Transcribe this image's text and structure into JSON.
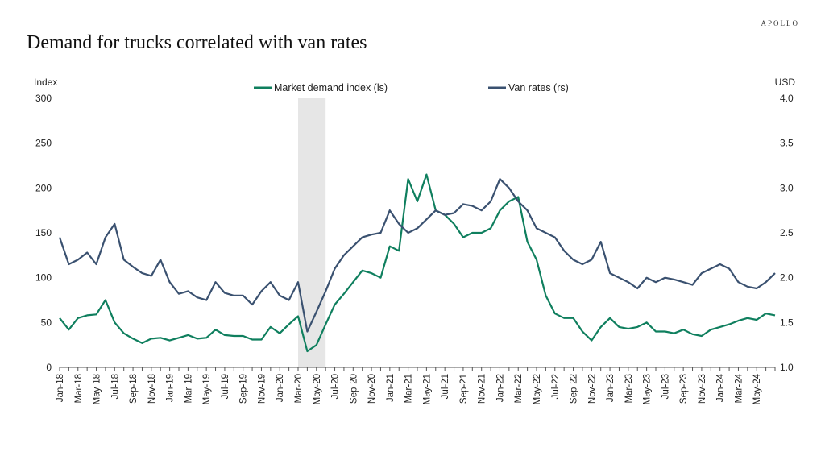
{
  "brand": "APOLLO",
  "title": "Demand for trucks correlated with van rates",
  "colors": {
    "market_demand": "#0f7f5e",
    "van_rates": "#3a5170",
    "recession_shade": "#e6e6e6"
  },
  "chart_data": {
    "type": "line",
    "left_axis_label": "Index",
    "right_axis_label": "USD",
    "y_left_range": [
      0,
      300
    ],
    "y_right_range": [
      1.0,
      4.0
    ],
    "y_left_ticks": [
      "0",
      "50",
      "100",
      "150",
      "200",
      "250",
      "300"
    ],
    "y_right_ticks": [
      "1.0",
      "1.5",
      "2.0",
      "2.5",
      "3.0",
      "3.5",
      "4.0"
    ],
    "x_range": [
      "2018-01",
      "2024-07"
    ],
    "x_tick_labels": [
      "Jan-18",
      "Mar-18",
      "May-18",
      "Jul-18",
      "Sep-18",
      "Nov-18",
      "Jan-19",
      "Mar-19",
      "May-19",
      "Jul-19",
      "Sep-19",
      "Nov-19",
      "Jan-20",
      "Mar-20",
      "May-20",
      "Jul-20",
      "Sep-20",
      "Nov-20",
      "Jan-21",
      "Mar-21",
      "May-21",
      "Jul-21",
      "Sep-21",
      "Nov-21",
      "Jan-22",
      "Mar-22",
      "May-22",
      "Jul-22",
      "Sep-22",
      "Nov-22",
      "Jan-23",
      "Mar-23",
      "May-23",
      "Jul-23",
      "Sep-23",
      "Nov-23",
      "Jan-24",
      "Mar-24",
      "May-24"
    ],
    "shaded_region": [
      "2020-03",
      "2020-06"
    ],
    "grid": false,
    "legend_position": "top-center",
    "series": [
      {
        "name": "Market demand index (ls)",
        "axis": "left",
        "x": [
          "2018-01",
          "2018-02",
          "2018-03",
          "2018-04",
          "2018-05",
          "2018-06",
          "2018-07",
          "2018-08",
          "2018-09",
          "2018-10",
          "2018-11",
          "2018-12",
          "2019-01",
          "2019-02",
          "2019-03",
          "2019-04",
          "2019-05",
          "2019-06",
          "2019-07",
          "2019-08",
          "2019-09",
          "2019-10",
          "2019-11",
          "2019-12",
          "2020-01",
          "2020-02",
          "2020-03",
          "2020-04",
          "2020-05",
          "2020-06",
          "2020-07",
          "2020-08",
          "2020-09",
          "2020-10",
          "2020-11",
          "2020-12",
          "2021-01",
          "2021-02",
          "2021-03",
          "2021-04",
          "2021-05",
          "2021-06",
          "2021-07",
          "2021-08",
          "2021-09",
          "2021-10",
          "2021-11",
          "2021-12",
          "2022-01",
          "2022-02",
          "2022-03",
          "2022-04",
          "2022-05",
          "2022-06",
          "2022-07",
          "2022-08",
          "2022-09",
          "2022-10",
          "2022-11",
          "2022-12",
          "2023-01",
          "2023-02",
          "2023-03",
          "2023-04",
          "2023-05",
          "2023-06",
          "2023-07",
          "2023-08",
          "2023-09",
          "2023-10",
          "2023-11",
          "2023-12",
          "2024-01",
          "2024-02",
          "2024-03",
          "2024-04",
          "2024-05",
          "2024-06",
          "2024-07"
        ],
        "values": [
          55,
          42,
          55,
          58,
          59,
          75,
          50,
          38,
          32,
          27,
          32,
          33,
          30,
          33,
          36,
          32,
          33,
          42,
          36,
          35,
          35,
          31,
          31,
          45,
          38,
          48,
          57,
          18,
          25,
          48,
          70,
          82,
          95,
          108,
          105,
          100,
          135,
          130,
          210,
          185,
          215,
          175,
          170,
          160,
          145,
          150,
          150,
          155,
          175,
          185,
          190,
          140,
          120,
          80,
          60,
          55,
          55,
          40,
          30,
          45,
          55,
          45,
          43,
          45,
          50,
          40,
          40,
          38,
          42,
          37,
          35,
          42,
          45,
          48,
          52,
          55,
          53,
          60,
          58
        ]
      },
      {
        "name": "Van rates (rs)",
        "axis": "right",
        "x": [
          "2018-01",
          "2018-02",
          "2018-03",
          "2018-04",
          "2018-05",
          "2018-06",
          "2018-07",
          "2018-08",
          "2018-09",
          "2018-10",
          "2018-11",
          "2018-12",
          "2019-01",
          "2019-02",
          "2019-03",
          "2019-04",
          "2019-05",
          "2019-06",
          "2019-07",
          "2019-08",
          "2019-09",
          "2019-10",
          "2019-11",
          "2019-12",
          "2020-01",
          "2020-02",
          "2020-03",
          "2020-04",
          "2020-05",
          "2020-06",
          "2020-07",
          "2020-08",
          "2020-09",
          "2020-10",
          "2020-11",
          "2020-12",
          "2021-01",
          "2021-02",
          "2021-03",
          "2021-04",
          "2021-05",
          "2021-06",
          "2021-07",
          "2021-08",
          "2021-09",
          "2021-10",
          "2021-11",
          "2021-12",
          "2022-01",
          "2022-02",
          "2022-03",
          "2022-04",
          "2022-05",
          "2022-06",
          "2022-07",
          "2022-08",
          "2022-09",
          "2022-10",
          "2022-11",
          "2022-12",
          "2023-01",
          "2023-02",
          "2023-03",
          "2023-04",
          "2023-05",
          "2023-06",
          "2023-07",
          "2023-08",
          "2023-09",
          "2023-10",
          "2023-11",
          "2023-12",
          "2024-01",
          "2024-02",
          "2024-03",
          "2024-04",
          "2024-05",
          "2024-06",
          "2024-07"
        ],
        "values": [
          2.45,
          2.15,
          2.2,
          2.28,
          2.15,
          2.45,
          2.6,
          2.2,
          2.12,
          2.05,
          2.02,
          2.2,
          1.95,
          1.82,
          1.85,
          1.78,
          1.75,
          1.95,
          1.83,
          1.8,
          1.8,
          1.7,
          1.85,
          1.95,
          1.8,
          1.75,
          1.95,
          1.4,
          1.62,
          1.85,
          2.1,
          2.25,
          2.35,
          2.45,
          2.48,
          2.5,
          2.75,
          2.6,
          2.5,
          2.55,
          2.65,
          2.75,
          2.7,
          2.72,
          2.82,
          2.8,
          2.75,
          2.85,
          3.1,
          3.0,
          2.85,
          2.75,
          2.55,
          2.5,
          2.45,
          2.3,
          2.2,
          2.15,
          2.2,
          2.4,
          2.05,
          2.0,
          1.95,
          1.88,
          2.0,
          1.95,
          2.0,
          1.98,
          1.95,
          1.92,
          2.05,
          2.1,
          2.15,
          2.1,
          1.95,
          1.9,
          1.88,
          1.95,
          2.05
        ]
      }
    ]
  }
}
